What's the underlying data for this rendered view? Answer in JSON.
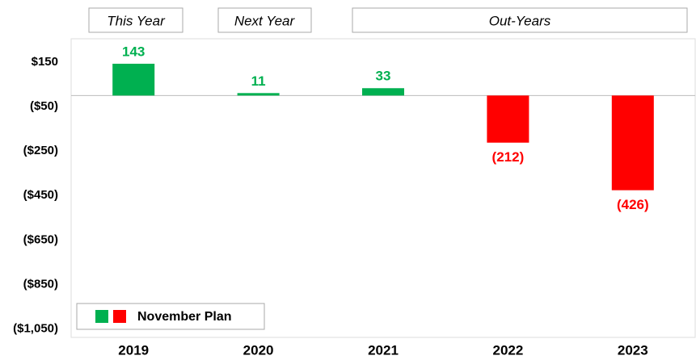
{
  "chart_data": {
    "type": "bar",
    "period_labels": [
      "This Year",
      "Next Year",
      "Out-Years"
    ],
    "categories": [
      "2019",
      "2020",
      "2021",
      "2022",
      "2023"
    ],
    "values": [
      143,
      11,
      33,
      -212,
      -426
    ],
    "value_labels": [
      "143",
      "11",
      "33",
      "(212)",
      "(426)"
    ],
    "colors": [
      "#00b050",
      "#00b050",
      "#00b050",
      "#ff0000",
      "#ff0000"
    ],
    "ylim": [
      -1050,
      250
    ],
    "yticks": [
      {
        "value": 150,
        "label": "$150"
      },
      {
        "value": -50,
        "label": "($50)"
      },
      {
        "value": -250,
        "label": "($250)"
      },
      {
        "value": -450,
        "label": "($450)"
      },
      {
        "value": -650,
        "label": "($650)"
      },
      {
        "value": -850,
        "label": "($850)"
      },
      {
        "value": -1050,
        "label": "($1,050)"
      }
    ],
    "legend": {
      "label": "November Plan",
      "colors": [
        "#00b050",
        "#ff0000"
      ],
      "position": "lower left"
    }
  }
}
